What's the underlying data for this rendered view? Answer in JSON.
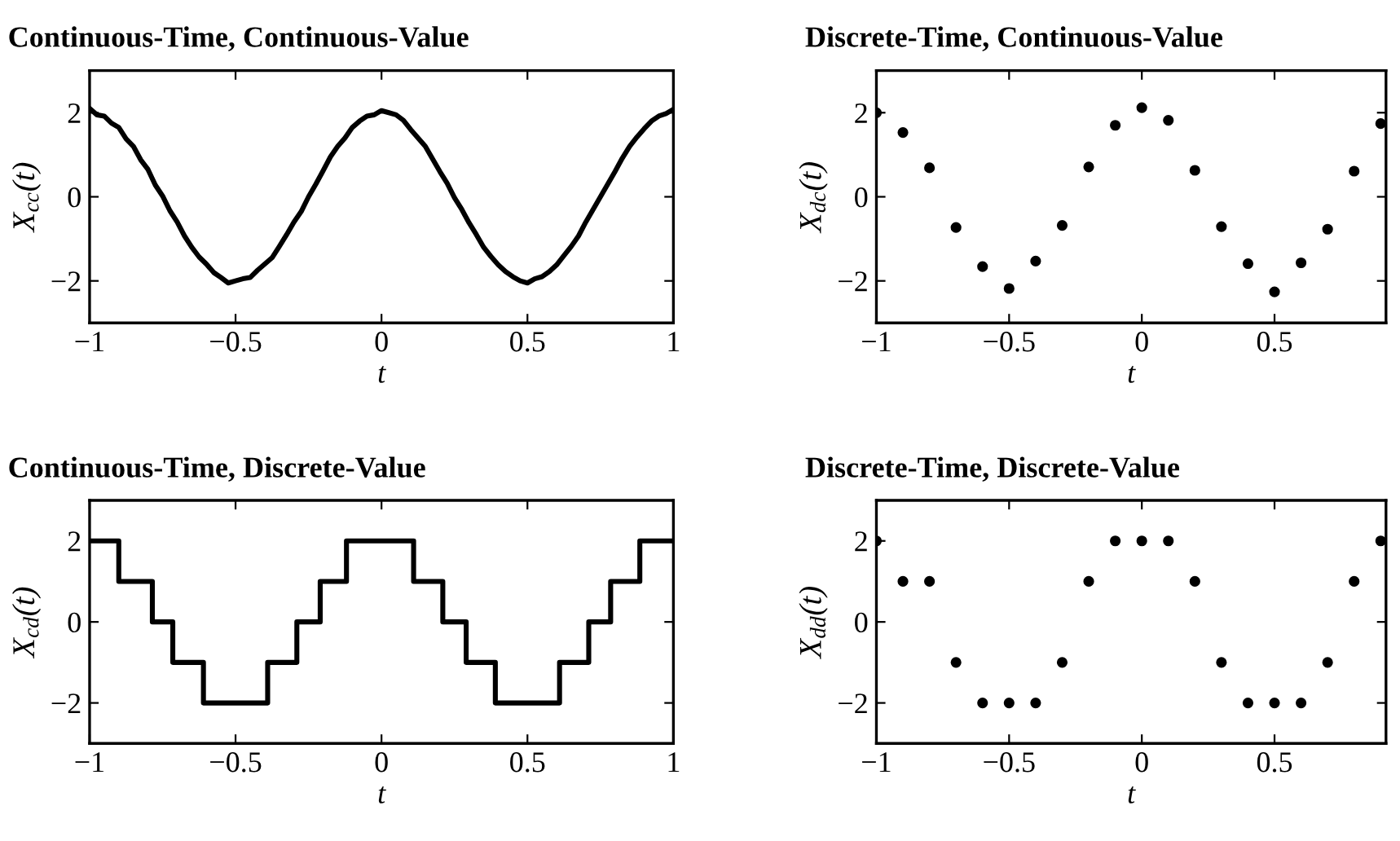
{
  "chart_data": [
    {
      "type": "line",
      "title": "Continuous-Time, Continuous-Value",
      "xlabel": "t",
      "ylabel": "X$_{cc}$(t)",
      "xlim": [
        -1,
        1
      ],
      "ylim": [
        -3,
        3
      ],
      "xticks": [
        -1,
        -0.5,
        0,
        0.5,
        1
      ],
      "yticks": [
        -2,
        0,
        2
      ],
      "grid": false,
      "legend": false,
      "marker": "none",
      "line_style": "solid",
      "series": [
        {
          "color": "#000000",
          "x": [
            -1,
            -0.975,
            -0.95,
            -0.925,
            -0.9,
            -0.875,
            -0.85,
            -0.825,
            -0.8,
            -0.775,
            -0.75,
            -0.725,
            -0.7,
            -0.675,
            -0.65,
            -0.625,
            -0.6,
            -0.575,
            -0.55,
            -0.525,
            -0.5,
            -0.475,
            -0.45,
            -0.425,
            -0.4,
            -0.375,
            -0.35,
            -0.325,
            -0.3,
            -0.275,
            -0.25,
            -0.225,
            -0.2,
            -0.175,
            -0.15,
            -0.125,
            -0.1,
            -0.075,
            -0.05,
            -0.025,
            0,
            0.025,
            0.05,
            0.075,
            0.1,
            0.125,
            0.15,
            0.175,
            0.2,
            0.225,
            0.25,
            0.275,
            0.3,
            0.325,
            0.35,
            0.375,
            0.4,
            0.425,
            0.45,
            0.475,
            0.5,
            0.525,
            0.55,
            0.575,
            0.6,
            0.625,
            0.65,
            0.675,
            0.7,
            0.725,
            0.75,
            0.775,
            0.8,
            0.825,
            0.85,
            0.875,
            0.9,
            0.925,
            0.95,
            0.975,
            1
          ],
          "values": [
            2.1,
            1.95,
            1.92,
            1.75,
            1.65,
            1.38,
            1.2,
            0.88,
            0.65,
            0.28,
            0.02,
            -0.33,
            -0.6,
            -0.93,
            -1.2,
            -1.43,
            -1.6,
            -1.8,
            -1.92,
            -2.05,
            -2.0,
            -1.95,
            -1.92,
            -1.75,
            -1.6,
            -1.45,
            -1.18,
            -0.9,
            -0.6,
            -0.35,
            0.0,
            0.3,
            0.62,
            0.95,
            1.2,
            1.4,
            1.65,
            1.8,
            1.92,
            1.95,
            2.05,
            2.0,
            1.95,
            1.82,
            1.6,
            1.4,
            1.2,
            0.9,
            0.6,
            0.32,
            -0.02,
            -0.3,
            -0.62,
            -0.9,
            -1.2,
            -1.42,
            -1.62,
            -1.78,
            -1.9,
            -2.0,
            -2.05,
            -1.95,
            -1.9,
            -1.78,
            -1.62,
            -1.4,
            -1.18,
            -0.93,
            -0.6,
            -0.3,
            0.0,
            0.3,
            0.6,
            0.92,
            1.2,
            1.42,
            1.62,
            1.8,
            1.92,
            1.98,
            2.08
          ]
        }
      ]
    },
    {
      "type": "scatter",
      "title": "Discrete-Time, Continuous-Value",
      "xlabel": "t",
      "ylabel": "X$_{dc}$(t)",
      "xlim": [
        -1,
        0.92
      ],
      "ylim": [
        -3,
        3
      ],
      "xticks": [
        -1,
        -0.5,
        0,
        0.5
      ],
      "yticks": [
        -2,
        0,
        2
      ],
      "grid": false,
      "legend": false,
      "marker": "circle",
      "series": [
        {
          "color": "#000000",
          "x": [
            -1,
            -0.9,
            -0.8,
            -0.7,
            -0.6,
            -0.5,
            -0.4,
            -0.3,
            -0.2,
            -0.1,
            0,
            0.1,
            0.2,
            0.3,
            0.4,
            0.5,
            0.6,
            0.7,
            0.8,
            0.9
          ],
          "values": [
            2.0,
            1.53,
            0.69,
            -0.73,
            -1.66,
            -2.18,
            -1.53,
            -0.68,
            0.71,
            1.7,
            2.12,
            1.82,
            0.63,
            -0.71,
            -1.59,
            -2.26,
            -1.57,
            -0.77,
            0.61,
            1.74
          ]
        }
      ]
    },
    {
      "type": "step",
      "title": "Continuous-Time, Discrete-Value",
      "xlabel": "t",
      "ylabel": "X$_{cd}$(t)",
      "xlim": [
        -1,
        1
      ],
      "ylim": [
        -3,
        3
      ],
      "xticks": [
        -1,
        -0.5,
        0,
        0.5,
        1
      ],
      "yticks": [
        -2,
        0,
        2
      ],
      "grid": false,
      "legend": false,
      "marker": "none",
      "line_style": "solid",
      "series": [
        {
          "color": "#000000",
          "x": [
            -1,
            -0.9,
            -0.785,
            -0.715,
            -0.61,
            -0.39,
            -0.29,
            -0.21,
            -0.12,
            0.11,
            0.21,
            0.29,
            0.39,
            0.61,
            0.71,
            0.785,
            0.885,
            1
          ],
          "values": [
            2,
            1,
            0,
            -1,
            -2,
            -1,
            0,
            1,
            2,
            1,
            0,
            -1,
            -2,
            -1,
            0,
            1,
            2,
            2
          ]
        }
      ]
    },
    {
      "type": "scatter",
      "title": "Discrete-Time, Discrete-Value",
      "xlabel": "t",
      "ylabel": "X$_{dd}$(t)",
      "xlim": [
        -1,
        0.92
      ],
      "ylim": [
        -3,
        3
      ],
      "xticks": [
        -1,
        -0.5,
        0,
        0.5
      ],
      "yticks": [
        -2,
        0,
        2
      ],
      "grid": false,
      "legend": false,
      "marker": "circle",
      "series": [
        {
          "color": "#000000",
          "x": [
            -1,
            -0.9,
            -0.8,
            -0.7,
            -0.6,
            -0.5,
            -0.4,
            -0.3,
            -0.2,
            -0.1,
            0,
            0.1,
            0.2,
            0.3,
            0.4,
            0.5,
            0.6,
            0.7,
            0.8,
            0.9
          ],
          "values": [
            2,
            1,
            1,
            -1,
            -2,
            -2,
            -2,
            -1,
            1,
            2,
            2,
            2,
            1,
            -1,
            -2,
            -2,
            -2,
            -1,
            1,
            2
          ]
        }
      ]
    }
  ]
}
